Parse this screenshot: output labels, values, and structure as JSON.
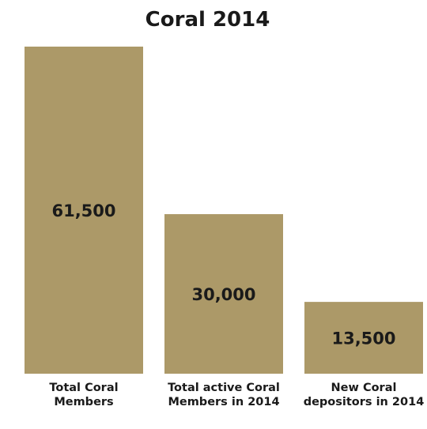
{
  "chart_data": {
    "type": "bar",
    "title": "Coral 2014",
    "categories": [
      "Total Coral Members",
      "Total active Coral Members in 2014",
      "New Coral depositors in 2014"
    ],
    "values": [
      61500,
      30000,
      13500
    ],
    "value_labels": [
      "61,500",
      "30,000",
      "13,500"
    ],
    "xlabel": "",
    "ylabel": "",
    "ylim": [
      0,
      61500
    ],
    "grid": false,
    "legend": "none",
    "bar_color": "#ac9968"
  }
}
